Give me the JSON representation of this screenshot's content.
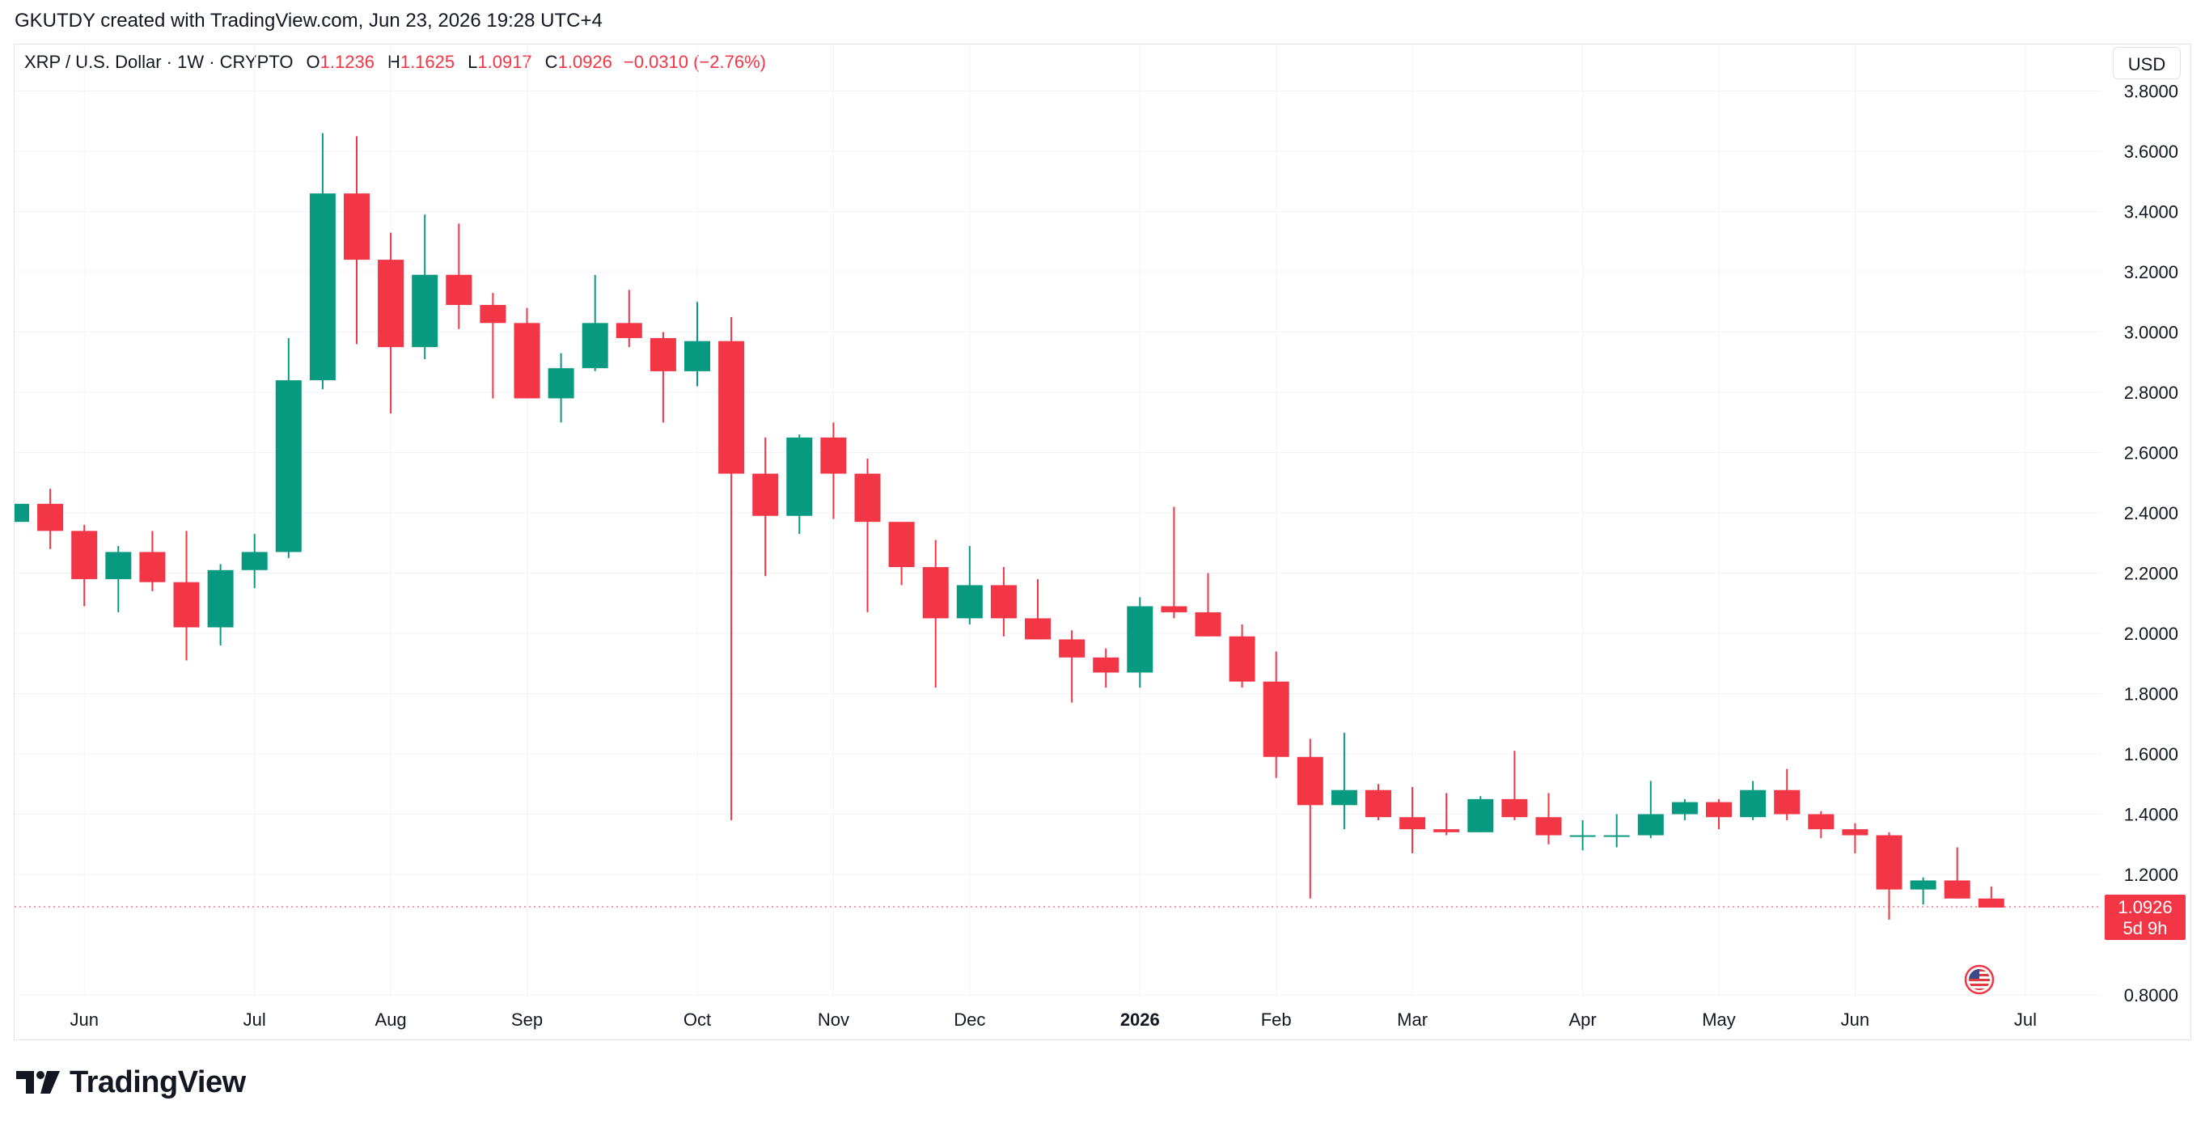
{
  "header": {
    "credit": "GKUTDY created with TradingView.com, Jun 23, 2026 19:28 UTC+4"
  },
  "legend": {
    "symbol": "XRP / U.S. Dollar · 1W · CRYPTO",
    "open_label": "O",
    "open": "1.1236",
    "high_label": "H",
    "high": "1.1625",
    "low_label": "L",
    "low": "1.0917",
    "close_label": "C",
    "close": "1.0926",
    "change": "−0.0310 (−2.76%)"
  },
  "currency_button": "USD",
  "price_tag": {
    "value": "1.0926",
    "countdown": "5d 9h"
  },
  "brand": {
    "name": "TradingView"
  },
  "colors": {
    "up": "#089981",
    "down": "#f23645",
    "grid": "#f0f3fa",
    "axis_text": "#131722"
  },
  "icons": {
    "brand": "tradingview-logo-icon",
    "flag": "us-flag-icon"
  },
  "chart_data": {
    "type": "candlestick",
    "interval": "1W",
    "ylim": [
      0.8,
      3.8
    ],
    "y_ticks": [
      "0.8000",
      "1.2000",
      "1.4000",
      "1.6000",
      "1.8000",
      "2.0000",
      "2.2000",
      "2.4000",
      "2.6000",
      "2.8000",
      "3.0000",
      "3.2000",
      "3.4000",
      "3.6000",
      "3.8000"
    ],
    "x_ticks": [
      {
        "label": "Jun",
        "index": 2,
        "bold": false
      },
      {
        "label": "Jul",
        "index": 7,
        "bold": false
      },
      {
        "label": "Aug",
        "index": 11,
        "bold": false
      },
      {
        "label": "Sep",
        "index": 15,
        "bold": false
      },
      {
        "label": "Oct",
        "index": 20,
        "bold": false
      },
      {
        "label": "Nov",
        "index": 24,
        "bold": false
      },
      {
        "label": "Dec",
        "index": 28,
        "bold": false
      },
      {
        "label": "2026",
        "index": 33,
        "bold": true
      },
      {
        "label": "Feb",
        "index": 37,
        "bold": false
      },
      {
        "label": "Mar",
        "index": 41,
        "bold": false
      },
      {
        "label": "Apr",
        "index": 46,
        "bold": false
      },
      {
        "label": "May",
        "index": 50,
        "bold": false
      },
      {
        "label": "Jun",
        "index": 54,
        "bold": false
      },
      {
        "label": "Jul",
        "index": 59,
        "bold": false
      }
    ],
    "candles": [
      {
        "o": 2.37,
        "h": 2.43,
        "l": 2.37,
        "c": 2.43
      },
      {
        "o": 2.43,
        "h": 2.48,
        "l": 2.28,
        "c": 2.34
      },
      {
        "o": 2.34,
        "h": 2.36,
        "l": 2.09,
        "c": 2.18
      },
      {
        "o": 2.18,
        "h": 2.29,
        "l": 2.07,
        "c": 2.27
      },
      {
        "o": 2.27,
        "h": 2.34,
        "l": 2.14,
        "c": 2.17
      },
      {
        "o": 2.17,
        "h": 2.34,
        "l": 1.91,
        "c": 2.02
      },
      {
        "o": 2.02,
        "h": 2.23,
        "l": 1.96,
        "c": 2.21
      },
      {
        "o": 2.21,
        "h": 2.33,
        "l": 2.15,
        "c": 2.27
      },
      {
        "o": 2.27,
        "h": 2.98,
        "l": 2.25,
        "c": 2.84
      },
      {
        "o": 2.84,
        "h": 3.66,
        "l": 2.81,
        "c": 3.46
      },
      {
        "o": 3.46,
        "h": 3.65,
        "l": 2.96,
        "c": 3.24
      },
      {
        "o": 3.24,
        "h": 3.33,
        "l": 2.73,
        "c": 2.95
      },
      {
        "o": 2.95,
        "h": 3.39,
        "l": 2.91,
        "c": 3.19
      },
      {
        "o": 3.19,
        "h": 3.36,
        "l": 3.01,
        "c": 3.09
      },
      {
        "o": 3.09,
        "h": 3.13,
        "l": 2.78,
        "c": 3.03
      },
      {
        "o": 3.03,
        "h": 3.08,
        "l": 2.78,
        "c": 2.78
      },
      {
        "o": 2.78,
        "h": 2.93,
        "l": 2.7,
        "c": 2.88
      },
      {
        "o": 2.88,
        "h": 3.19,
        "l": 2.87,
        "c": 3.03
      },
      {
        "o": 3.03,
        "h": 3.14,
        "l": 2.95,
        "c": 2.98
      },
      {
        "o": 2.98,
        "h": 3.0,
        "l": 2.7,
        "c": 2.87
      },
      {
        "o": 2.87,
        "h": 3.1,
        "l": 2.82,
        "c": 2.97
      },
      {
        "o": 2.97,
        "h": 3.05,
        "l": 1.38,
        "c": 2.53
      },
      {
        "o": 2.53,
        "h": 2.65,
        "l": 2.19,
        "c": 2.39
      },
      {
        "o": 2.39,
        "h": 2.66,
        "l": 2.33,
        "c": 2.65
      },
      {
        "o": 2.65,
        "h": 2.7,
        "l": 2.38,
        "c": 2.53
      },
      {
        "o": 2.53,
        "h": 2.58,
        "l": 2.07,
        "c": 2.37
      },
      {
        "o": 2.37,
        "h": 2.37,
        "l": 2.16,
        "c": 2.22
      },
      {
        "o": 2.22,
        "h": 2.31,
        "l": 1.82,
        "c": 2.05
      },
      {
        "o": 2.05,
        "h": 2.29,
        "l": 2.03,
        "c": 2.16
      },
      {
        "o": 2.16,
        "h": 2.22,
        "l": 1.99,
        "c": 2.05
      },
      {
        "o": 2.05,
        "h": 2.18,
        "l": 1.98,
        "c": 1.98
      },
      {
        "o": 1.98,
        "h": 2.01,
        "l": 1.77,
        "c": 1.92
      },
      {
        "o": 1.92,
        "h": 1.95,
        "l": 1.82,
        "c": 1.87
      },
      {
        "o": 1.87,
        "h": 2.12,
        "l": 1.82,
        "c": 2.09
      },
      {
        "o": 2.09,
        "h": 2.42,
        "l": 2.05,
        "c": 2.07
      },
      {
        "o": 2.07,
        "h": 2.2,
        "l": 1.99,
        "c": 1.99
      },
      {
        "o": 1.99,
        "h": 2.03,
        "l": 1.82,
        "c": 1.84
      },
      {
        "o": 1.84,
        "h": 1.94,
        "l": 1.52,
        "c": 1.59
      },
      {
        "o": 1.59,
        "h": 1.65,
        "l": 1.12,
        "c": 1.43
      },
      {
        "o": 1.43,
        "h": 1.67,
        "l": 1.35,
        "c": 1.48
      },
      {
        "o": 1.48,
        "h": 1.5,
        "l": 1.38,
        "c": 1.39
      },
      {
        "o": 1.39,
        "h": 1.49,
        "l": 1.27,
        "c": 1.35
      },
      {
        "o": 1.35,
        "h": 1.47,
        "l": 1.33,
        "c": 1.34
      },
      {
        "o": 1.34,
        "h": 1.46,
        "l": 1.34,
        "c": 1.45
      },
      {
        "o": 1.45,
        "h": 1.61,
        "l": 1.38,
        "c": 1.39
      },
      {
        "o": 1.39,
        "h": 1.47,
        "l": 1.3,
        "c": 1.33
      },
      {
        "o": 1.33,
        "h": 1.38,
        "l": 1.28,
        "c": 1.33
      },
      {
        "o": 1.33,
        "h": 1.4,
        "l": 1.29,
        "c": 1.33
      },
      {
        "o": 1.33,
        "h": 1.51,
        "l": 1.32,
        "c": 1.4
      },
      {
        "o": 1.4,
        "h": 1.45,
        "l": 1.38,
        "c": 1.44
      },
      {
        "o": 1.44,
        "h": 1.45,
        "l": 1.35,
        "c": 1.39
      },
      {
        "o": 1.39,
        "h": 1.51,
        "l": 1.38,
        "c": 1.48
      },
      {
        "o": 1.48,
        "h": 1.55,
        "l": 1.38,
        "c": 1.4
      },
      {
        "o": 1.4,
        "h": 1.41,
        "l": 1.32,
        "c": 1.35
      },
      {
        "o": 1.35,
        "h": 1.37,
        "l": 1.27,
        "c": 1.33
      },
      {
        "o": 1.33,
        "h": 1.34,
        "l": 1.05,
        "c": 1.15
      },
      {
        "o": 1.15,
        "h": 1.19,
        "l": 1.1,
        "c": 1.18
      },
      {
        "o": 1.18,
        "h": 1.29,
        "l": 1.12,
        "c": 1.12
      },
      {
        "o": 1.12,
        "h": 1.16,
        "l": 1.09,
        "c": 1.09
      }
    ],
    "last_price": 1.0926
  }
}
